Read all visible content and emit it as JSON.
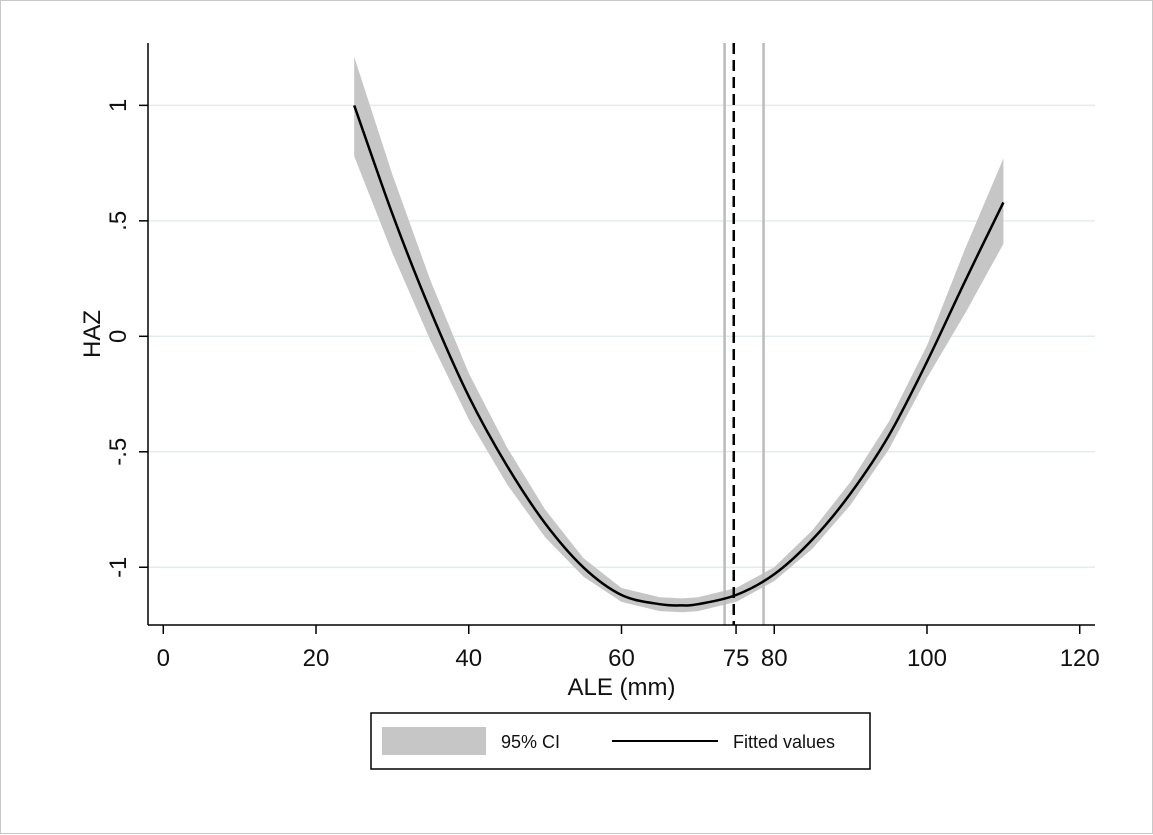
{
  "chart_data": {
    "type": "line",
    "xlabel": "ALE (mm)",
    "ylabel": "HAZ",
    "xlim": [
      -2,
      122
    ],
    "ylim": [
      -1.25,
      1.27
    ],
    "x_ticks": [
      0,
      20,
      40,
      60,
      75,
      80,
      100,
      120
    ],
    "x_tick_labels": [
      "0",
      "20",
      "40",
      "60",
      "75",
      "80",
      "100",
      "120"
    ],
    "y_ticks": [
      -1,
      -0.5,
      0,
      0.5,
      1
    ],
    "y_tick_labels": [
      "-1",
      "-.5",
      "0",
      ".5",
      "1"
    ],
    "grid": "horizontal",
    "colors": {
      "line": "#000000",
      "ci_band": "#c6c6c6",
      "grid": "#e3ecec",
      "vline_ci": "#bbbbbb"
    },
    "series": [
      {
        "name": "Fitted values",
        "kind": "line",
        "x": [
          25,
          30,
          35,
          40,
          45,
          50,
          55,
          60,
          65,
          68,
          70,
          75,
          80,
          85,
          90,
          95,
          100,
          105,
          110
        ],
        "y": [
          1.0,
          0.53,
          0.11,
          -0.26,
          -0.56,
          -0.81,
          -1.0,
          -1.12,
          -1.16,
          -1.165,
          -1.16,
          -1.12,
          -1.03,
          -0.88,
          -0.68,
          -0.43,
          -0.11,
          0.24,
          0.58
        ]
      },
      {
        "name": "95% CI",
        "kind": "band",
        "x": [
          25,
          30,
          35,
          40,
          45,
          50,
          55,
          60,
          65,
          68,
          70,
          75,
          80,
          85,
          90,
          95,
          100,
          105,
          110
        ],
        "lower": [
          0.78,
          0.36,
          -0.02,
          -0.36,
          -0.64,
          -0.87,
          -1.04,
          -1.15,
          -1.19,
          -1.195,
          -1.19,
          -1.15,
          -1.06,
          -0.92,
          -0.73,
          -0.49,
          -0.18,
          0.1,
          0.4
        ],
        "upper": [
          1.21,
          0.7,
          0.24,
          -0.16,
          -0.48,
          -0.75,
          -0.96,
          -1.09,
          -1.13,
          -1.135,
          -1.13,
          -1.09,
          -1.0,
          -0.84,
          -0.63,
          -0.37,
          -0.04,
          0.38,
          0.77
        ]
      }
    ],
    "reference_lines": [
      {
        "x": 73.5,
        "style": "solid",
        "role": "ci-lower"
      },
      {
        "x": 74.7,
        "style": "dashed",
        "role": "estimate"
      },
      {
        "x": 78.6,
        "style": "solid",
        "role": "ci-upper"
      }
    ],
    "legend": {
      "placement": "bottom-center",
      "entries": [
        {
          "label": "95% CI",
          "symbol": "band"
        },
        {
          "label": "Fitted values",
          "symbol": "line"
        }
      ]
    }
  }
}
